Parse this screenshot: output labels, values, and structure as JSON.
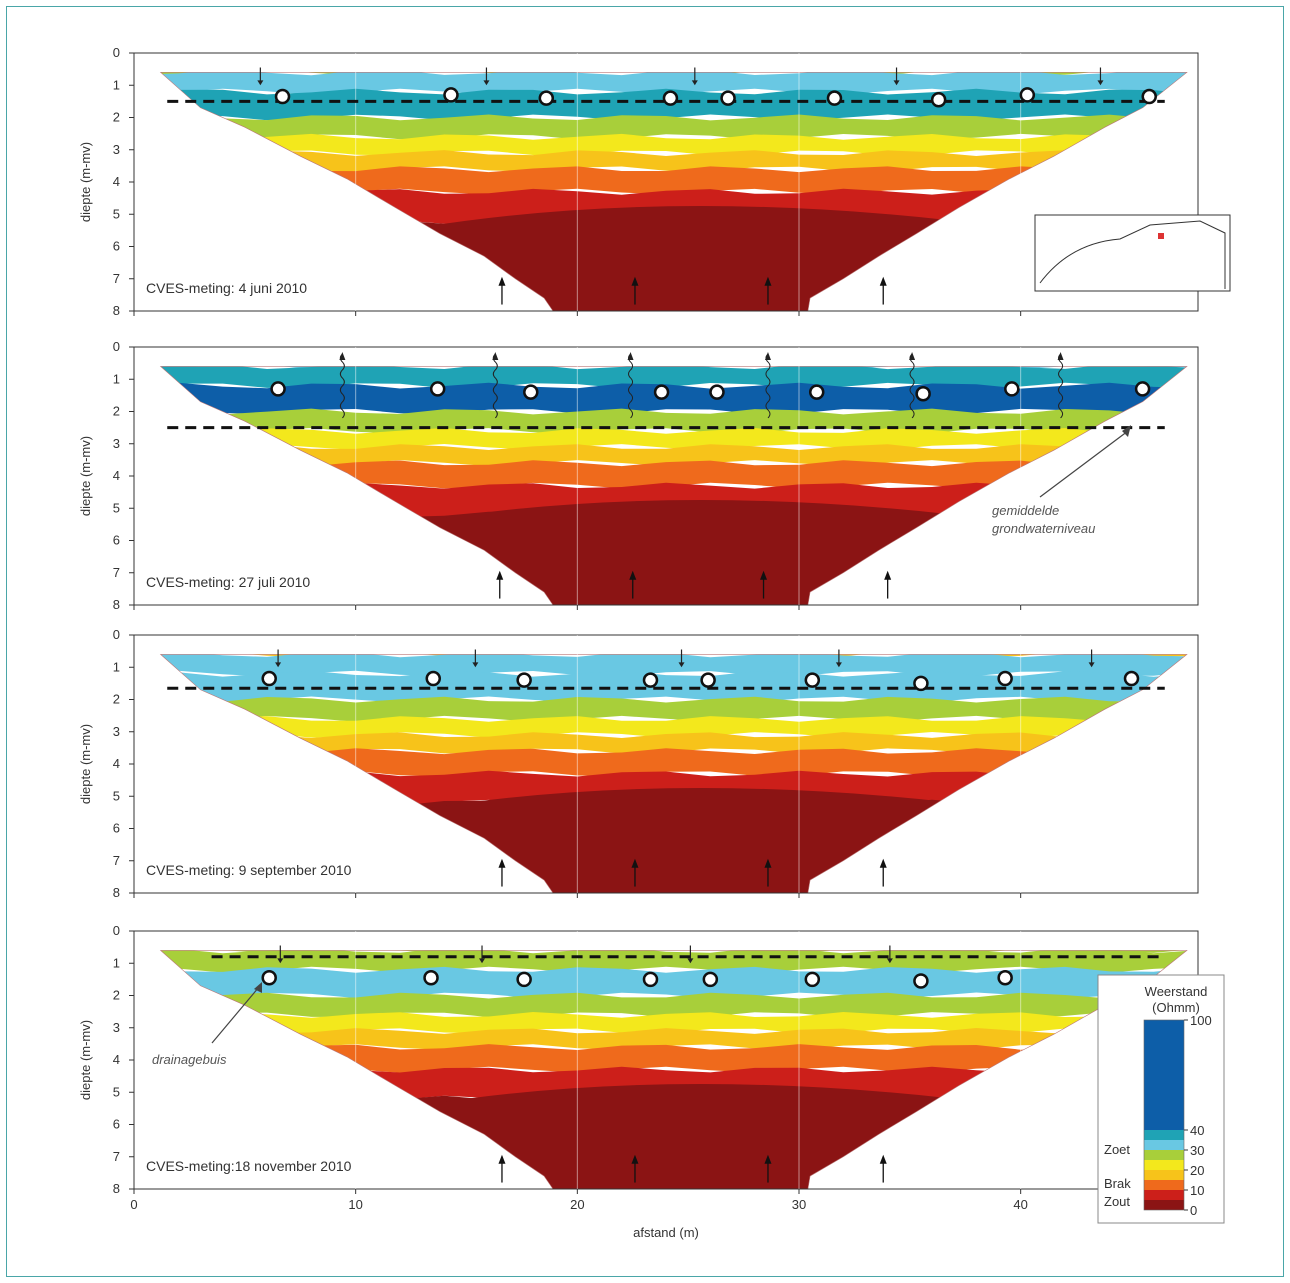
{
  "chart_data": [
    {
      "type": "heatmap",
      "title": "CVES-meting: 4 juni 2010",
      "ylabel": "diepte (m-mv)",
      "xlim": [
        0,
        48
      ],
      "ylim": [
        8,
        0
      ],
      "yticks": [
        "0",
        "1",
        "2",
        "3",
        "4",
        "5",
        "6",
        "7",
        "8"
      ],
      "groundwater_level": 1.5,
      "drains": [
        [
          6.7,
          1.35
        ],
        [
          14.3,
          1.3
        ],
        [
          18.6,
          1.4
        ],
        [
          24.2,
          1.4
        ],
        [
          26.8,
          1.4
        ],
        [
          31.6,
          1.4
        ],
        [
          36.3,
          1.45
        ],
        [
          40.3,
          1.3
        ],
        [
          45.8,
          1.35
        ]
      ],
      "arrows_down": [
        5.7,
        15.9,
        25.3,
        34.4,
        43.6
      ],
      "arrows_up": [
        16.6,
        22.6,
        28.6,
        33.8
      ],
      "inset_map": true
    },
    {
      "type": "heatmap",
      "title": "CVES-meting: 27 juli 2010",
      "ylabel": "diepte (m-mv)",
      "xlim": [
        0,
        48
      ],
      "ylim": [
        8,
        0
      ],
      "yticks": [
        "0",
        "1",
        "2",
        "3",
        "4",
        "5",
        "6",
        "7",
        "8"
      ],
      "groundwater_level": 2.5,
      "drains": [
        [
          6.5,
          1.3
        ],
        [
          13.7,
          1.3
        ],
        [
          17.9,
          1.4
        ],
        [
          23.8,
          1.4
        ],
        [
          26.3,
          1.4
        ],
        [
          30.8,
          1.4
        ],
        [
          35.6,
          1.45
        ],
        [
          39.6,
          1.3
        ],
        [
          45.5,
          1.3
        ]
      ],
      "arrows_up_wavy": [
        9.4,
        16.3,
        22.4,
        28.6,
        35.1,
        41.8
      ],
      "arrows_up": [
        16.5,
        22.5,
        28.4,
        34.0
      ],
      "annotation": [
        "gemiddelde",
        "grondwaterniveau"
      ]
    },
    {
      "type": "heatmap",
      "title": "CVES-meting: 9 september 2010",
      "ylabel": "diepte (m-mv)",
      "xlim": [
        0,
        48
      ],
      "ylim": [
        8,
        0
      ],
      "yticks": [
        "0",
        "1",
        "2",
        "3",
        "4",
        "5",
        "6",
        "7",
        "8"
      ],
      "groundwater_level": 1.65,
      "drains": [
        [
          6.1,
          1.35
        ],
        [
          13.5,
          1.35
        ],
        [
          17.6,
          1.4
        ],
        [
          23.3,
          1.4
        ],
        [
          25.9,
          1.4
        ],
        [
          30.6,
          1.4
        ],
        [
          35.5,
          1.5
        ],
        [
          39.3,
          1.35
        ],
        [
          45.0,
          1.35
        ]
      ],
      "arrows_down": [
        6.5,
        15.4,
        24.7,
        31.8,
        43.2
      ],
      "arrows_up": [
        16.6,
        22.6,
        28.6,
        33.8
      ]
    },
    {
      "type": "heatmap",
      "title": "CVES-meting:18 november 2010",
      "ylabel": "diepte (m-mv)",
      "xlabel": "afstand (m)",
      "xlim": [
        0,
        48
      ],
      "ylim": [
        8,
        0
      ],
      "xticks": [
        "0",
        "10",
        "20",
        "30",
        "40"
      ],
      "yticks": [
        "0",
        "1",
        "2",
        "3",
        "4",
        "5",
        "6",
        "7",
        "8"
      ],
      "groundwater_level": 0.8,
      "drains": [
        [
          6.1,
          1.45
        ],
        [
          13.4,
          1.45
        ],
        [
          17.6,
          1.5
        ],
        [
          23.3,
          1.5
        ],
        [
          26.0,
          1.5
        ],
        [
          30.6,
          1.5
        ],
        [
          35.5,
          1.55
        ],
        [
          39.3,
          1.45
        ]
      ],
      "arrows_down": [
        6.6,
        15.7,
        25.1,
        34.1
      ],
      "arrows_up": [
        16.6,
        22.6,
        28.6,
        33.8
      ],
      "annotation": [
        "drainagebuis"
      ]
    }
  ],
  "legend": {
    "title_line1": "Weerstand",
    "title_line2": "(Ohmm)",
    "ticks": [
      "100",
      "40",
      "30",
      "20",
      "10",
      "0"
    ],
    "labels": [
      "Zoet",
      "Brak",
      "Zout"
    ],
    "colors": [
      "#8b1414",
      "#cc1f1a",
      "#ef6a1c",
      "#f7c31a",
      "#f3e81c",
      "#a8cf3a",
      "#7fc4a8",
      "#69c8e3",
      "#1fa3b5",
      "#0d5ea8"
    ]
  }
}
